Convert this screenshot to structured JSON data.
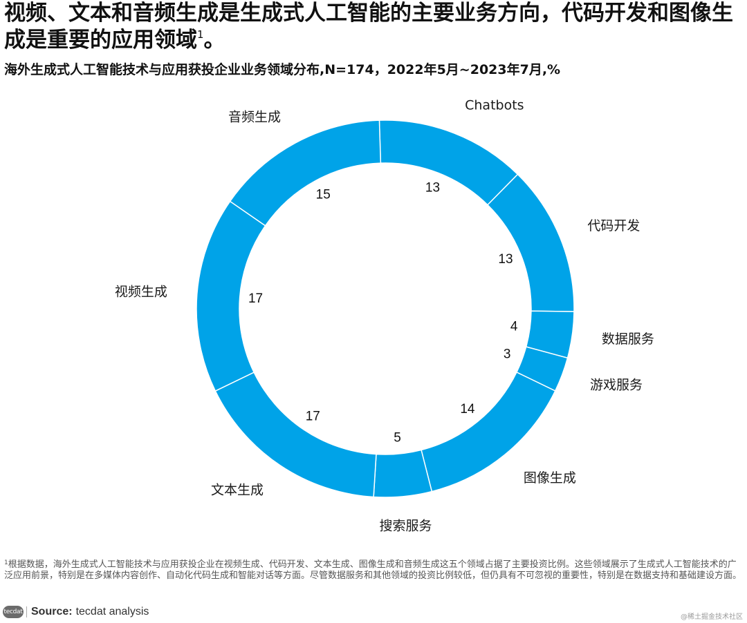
{
  "title": {
    "text": "视频、文本和音频生成是生成式人工智能的主要业务方向，代码开发和图像生成是重要的应用领域",
    "sup": "1",
    "suffix": "。"
  },
  "subtitle": "海外生成式人工智能技术与应用获投企业业务领域分布,N=174，2022年5月~2023年7月,%",
  "chart_data": {
    "type": "pie",
    "style": "donut",
    "color": "#00a3e8",
    "separator_color": "#ffffff",
    "categories": [
      "Chatbots",
      "代码开发",
      "数据服务",
      "游戏服务",
      "图像生成",
      "搜索服务",
      "文本生成",
      "视频生成",
      "音频生成"
    ],
    "values": [
      13,
      13,
      4,
      3,
      14,
      5,
      17,
      17,
      15
    ],
    "value_labels": [
      "13",
      "13",
      "4",
      "3",
      "14",
      "5",
      "17",
      "17",
      "15"
    ]
  },
  "footnote": {
    "sup": "1",
    "text": "根据数据，海外生成式人工智能技术与应用获投企业在视频生成、代码开发、文本生成、图像生成和音频生成这五个领域占据了主要投资比例。这些领域展示了生成式人工智能技术的广泛应用前景，特别是在多媒体内容创作、自动化代码生成和智能对话等方面。尽管数据服务和其他领域的投资比例较低，但仍具有不可忽视的重要性，特别是在数据支持和基础建设方面。"
  },
  "source": {
    "logo_text": "tecdat",
    "label": "Source:",
    "value": "tecdat analysis"
  },
  "watermark": "@稀土掘金技术社区"
}
